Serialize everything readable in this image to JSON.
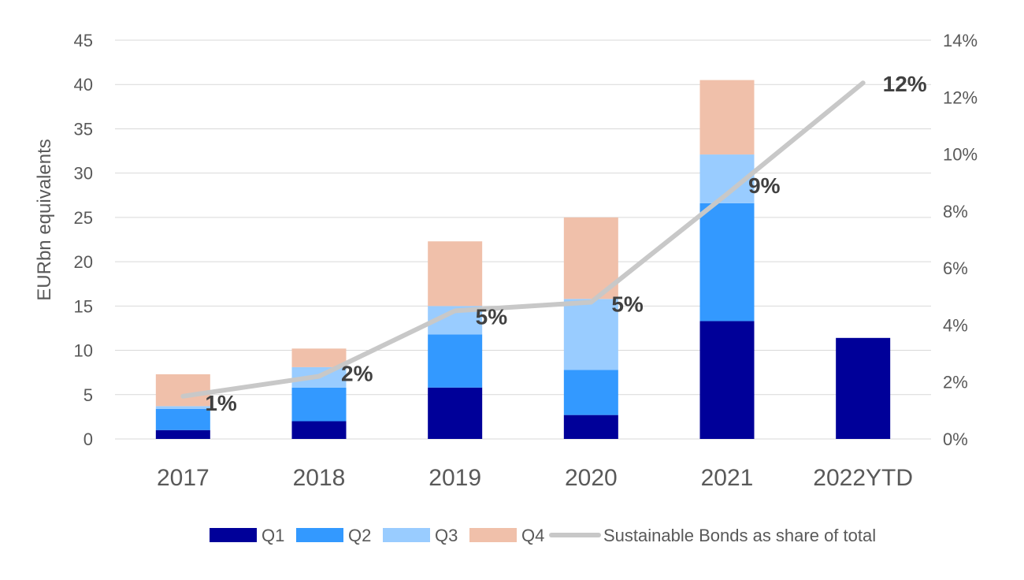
{
  "chart_data": {
    "type": "bar",
    "subtype": "stacked-bar-with-line",
    "title": "",
    "categories": [
      "2017",
      "2018",
      "2019",
      "2020",
      "2021",
      "2022YTD"
    ],
    "ylabel": "EURbn equivalents",
    "ylim": [
      0,
      45
    ],
    "yticks": [
      "0",
      "5",
      "10",
      "15",
      "20",
      "25",
      "30",
      "35",
      "40",
      "45"
    ],
    "y2lim": [
      0,
      14
    ],
    "y2ticks": [
      "0%",
      "2%",
      "4%",
      "6%",
      "8%",
      "10%",
      "12%",
      "14%"
    ],
    "grid": true,
    "legend_position": "bottom",
    "series": [
      {
        "name": "Q1",
        "kind": "bar",
        "color": "#000099",
        "values": [
          1.0,
          2.0,
          5.8,
          2.7,
          13.3,
          11.4
        ]
      },
      {
        "name": "Q2",
        "kind": "bar",
        "color": "#3399ff",
        "values": [
          2.4,
          3.8,
          6.0,
          5.1,
          13.3,
          0
        ]
      },
      {
        "name": "Q3",
        "kind": "bar",
        "color": "#99ccff",
        "values": [
          0.3,
          2.3,
          3.2,
          8.0,
          5.5,
          0
        ]
      },
      {
        "name": "Q4",
        "kind": "bar",
        "color": "#f0c0aa",
        "values": [
          3.6,
          2.1,
          7.3,
          9.2,
          8.4,
          0
        ]
      },
      {
        "name": "Sustainable Bonds as share of total",
        "kind": "line",
        "axis": "right",
        "color": "#c8c8c8",
        "values": [
          1.5,
          2.2,
          4.5,
          4.8,
          8.6,
          12.5
        ],
        "labels": [
          "1%",
          "2%",
          "5%",
          "5%",
          "9%",
          "12%"
        ]
      }
    ]
  }
}
